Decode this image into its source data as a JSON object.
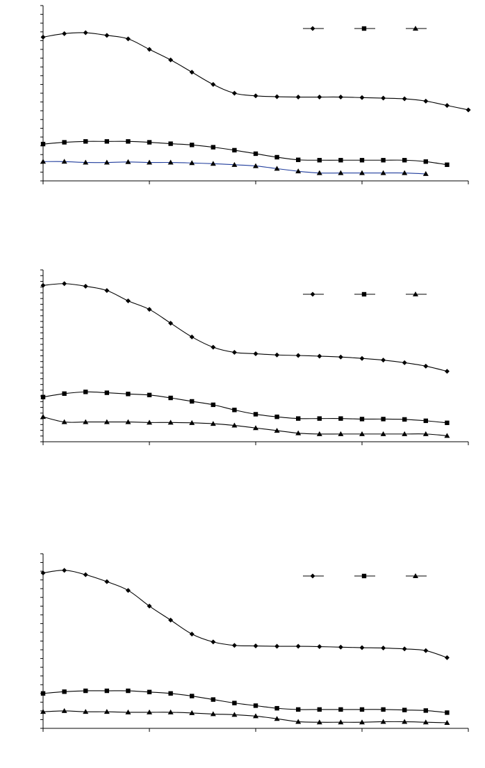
{
  "chart_data": [
    {
      "type": "line",
      "title": "",
      "xlabel": "",
      "ylabel": "",
      "legend_position": "top-right",
      "grid": false,
      "xlim": [
        0,
        20
      ],
      "ylim": [
        0,
        10
      ],
      "x_tick_count": 5,
      "y_tick_count": 21,
      "series": [
        {
          "marker": "diamond",
          "color": "#000000",
          "x": [
            0,
            1,
            2,
            3,
            4,
            5,
            6,
            7,
            8,
            9,
            10,
            11,
            12,
            13,
            14,
            15,
            16,
            17,
            18,
            19,
            20
          ],
          "y": [
            8.2,
            8.4,
            8.45,
            8.3,
            8.1,
            7.5,
            6.9,
            6.2,
            5.5,
            5.0,
            4.85,
            4.8,
            4.78,
            4.78,
            4.78,
            4.75,
            4.72,
            4.68,
            4.55,
            4.3,
            4.05
          ]
        },
        {
          "marker": "square",
          "color": "#000000",
          "x": [
            0,
            1,
            2,
            3,
            4,
            5,
            6,
            7,
            8,
            9,
            10,
            11,
            12,
            13,
            14,
            15,
            16,
            17,
            18,
            19
          ],
          "y": [
            2.1,
            2.2,
            2.25,
            2.25,
            2.25,
            2.2,
            2.12,
            2.05,
            1.92,
            1.75,
            1.55,
            1.35,
            1.2,
            1.18,
            1.18,
            1.18,
            1.18,
            1.18,
            1.1,
            0.92
          ]
        },
        {
          "marker": "triangle",
          "color": "#1f3c9c",
          "x": [
            0,
            1,
            2,
            3,
            4,
            5,
            6,
            7,
            8,
            9,
            10,
            11,
            12,
            13,
            14,
            15,
            16,
            17,
            18
          ],
          "y": [
            1.1,
            1.1,
            1.05,
            1.05,
            1.08,
            1.05,
            1.05,
            1.02,
            0.98,
            0.92,
            0.85,
            0.7,
            0.55,
            0.45,
            0.45,
            0.45,
            0.45,
            0.45,
            0.4
          ]
        }
      ]
    },
    {
      "type": "line",
      "title": "",
      "xlabel": "",
      "ylabel": "",
      "legend_position": "top-right",
      "grid": false,
      "xlim": [
        0,
        20
      ],
      "ylim": [
        0,
        10
      ],
      "x_tick_count": 5,
      "y_tick_count": 31,
      "series": [
        {
          "marker": "diamond",
          "color": "#000000",
          "x": [
            0,
            1,
            2,
            3,
            4,
            5,
            6,
            7,
            8,
            9,
            10,
            11,
            12,
            13,
            14,
            15,
            16,
            17,
            18,
            19
          ],
          "y": [
            9.1,
            9.2,
            9.05,
            8.8,
            8.2,
            7.7,
            6.9,
            6.1,
            5.5,
            5.2,
            5.12,
            5.05,
            5.02,
            4.98,
            4.93,
            4.85,
            4.75,
            4.6,
            4.4,
            4.1
          ]
        },
        {
          "marker": "square",
          "color": "#000000",
          "x": [
            0,
            1,
            2,
            3,
            4,
            5,
            6,
            7,
            8,
            9,
            10,
            11,
            12,
            13,
            14,
            15,
            16,
            17,
            18,
            19
          ],
          "y": [
            2.6,
            2.8,
            2.9,
            2.85,
            2.78,
            2.72,
            2.55,
            2.35,
            2.15,
            1.85,
            1.6,
            1.45,
            1.35,
            1.35,
            1.35,
            1.32,
            1.32,
            1.3,
            1.22,
            1.1
          ]
        },
        {
          "marker": "triangle",
          "color": "#000000",
          "x": [
            0,
            1,
            2,
            3,
            4,
            5,
            6,
            7,
            8,
            9,
            10,
            11,
            12,
            13,
            14,
            15,
            16,
            17,
            18,
            19
          ],
          "y": [
            1.45,
            1.15,
            1.15,
            1.15,
            1.15,
            1.12,
            1.12,
            1.1,
            1.05,
            0.95,
            0.8,
            0.65,
            0.5,
            0.45,
            0.45,
            0.45,
            0.45,
            0.45,
            0.45,
            0.35
          ]
        }
      ]
    },
    {
      "type": "line",
      "title": "",
      "xlabel": "",
      "ylabel": "",
      "legend_position": "top-right",
      "grid": false,
      "xlim": [
        0,
        20
      ],
      "ylim": [
        0,
        10
      ],
      "x_tick_count": 5,
      "y_tick_count": 21,
      "series": [
        {
          "marker": "diamond",
          "color": "#000000",
          "x": [
            0,
            1,
            2,
            3,
            4,
            5,
            6,
            7,
            8,
            9,
            10,
            11,
            12,
            13,
            14,
            15,
            16,
            17,
            18,
            19
          ],
          "y": [
            8.9,
            9.05,
            8.8,
            8.4,
            7.9,
            7.0,
            6.2,
            5.4,
            4.95,
            4.75,
            4.72,
            4.7,
            4.7,
            4.68,
            4.65,
            4.62,
            4.6,
            4.55,
            4.45,
            4.05
          ]
        },
        {
          "marker": "square",
          "color": "#000000",
          "x": [
            0,
            1,
            2,
            3,
            4,
            5,
            6,
            7,
            8,
            9,
            10,
            11,
            12,
            13,
            14,
            15,
            16,
            17,
            18,
            19
          ],
          "y": [
            2.0,
            2.1,
            2.15,
            2.15,
            2.15,
            2.08,
            2.0,
            1.85,
            1.65,
            1.45,
            1.3,
            1.15,
            1.08,
            1.08,
            1.08,
            1.08,
            1.08,
            1.05,
            1.02,
            0.9
          ]
        },
        {
          "marker": "triangle",
          "color": "#000000",
          "x": [
            0,
            1,
            2,
            3,
            4,
            5,
            6,
            7,
            8,
            9,
            10,
            11,
            12,
            13,
            14,
            15,
            16,
            17,
            18,
            19
          ],
          "y": [
            0.95,
            1.0,
            0.95,
            0.95,
            0.92,
            0.92,
            0.92,
            0.88,
            0.82,
            0.78,
            0.7,
            0.55,
            0.38,
            0.35,
            0.35,
            0.35,
            0.38,
            0.38,
            0.35,
            0.32
          ]
        }
      ]
    }
  ]
}
